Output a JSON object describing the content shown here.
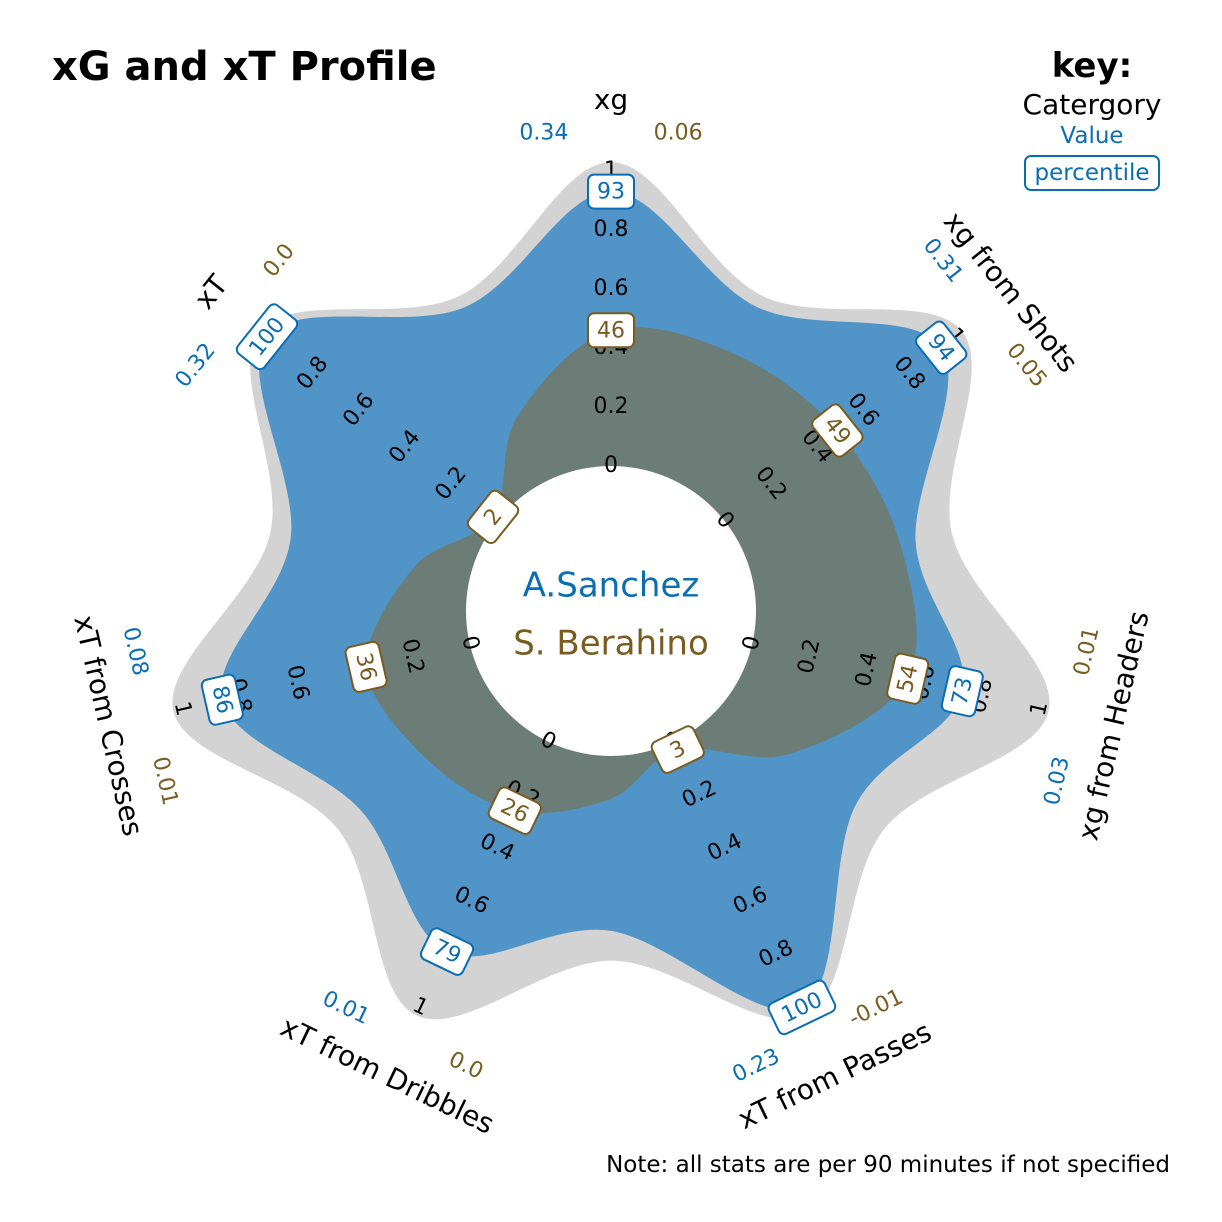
{
  "page": {
    "title": "xG and xT Profile",
    "note": "Note: all stats are per 90 minutes if not specified"
  },
  "key": {
    "title": "key:",
    "category": "Catergory",
    "value": "Value",
    "percentile": "percentile"
  },
  "colors": {
    "player1": "#0a6eb4",
    "player2": "#7a5c20",
    "fill1": "#4a90c6",
    "fill2": "#6e7b73",
    "ghost": "#d3d3d3"
  },
  "chart_data": {
    "type": "radar",
    "title": "xG and xT Profile",
    "rlim": [
      0,
      1
    ],
    "ticks": [
      "0",
      "0.2",
      "0.4",
      "0.6",
      "0.8",
      "1"
    ],
    "ghost_envelope": [
      1.0,
      1.0,
      1.0,
      1.0,
      1.0,
      1.0,
      1.0,
      1.0
    ],
    "categories": [
      "xg",
      "xg from Shots",
      "xg from Headers",
      "xT from Passes",
      "xT from Dribbles",
      "xT from Crosses",
      "xT"
    ],
    "series": [
      {
        "name": "A.Sanchez",
        "values": [
          "0.34",
          "0.31",
          "0.03",
          "0.23",
          "0.01",
          "0.08",
          "0.32"
        ],
        "percentiles": [
          93,
          94,
          73,
          100,
          79,
          86,
          100
        ]
      },
      {
        "name": "S. Berahino",
        "values": [
          "0.06",
          "0.05",
          "0.01",
          "-0.01",
          "0.0",
          "0.01",
          "0.0"
        ],
        "percentiles": [
          46,
          49,
          54,
          3,
          26,
          36,
          2
        ]
      }
    ]
  }
}
